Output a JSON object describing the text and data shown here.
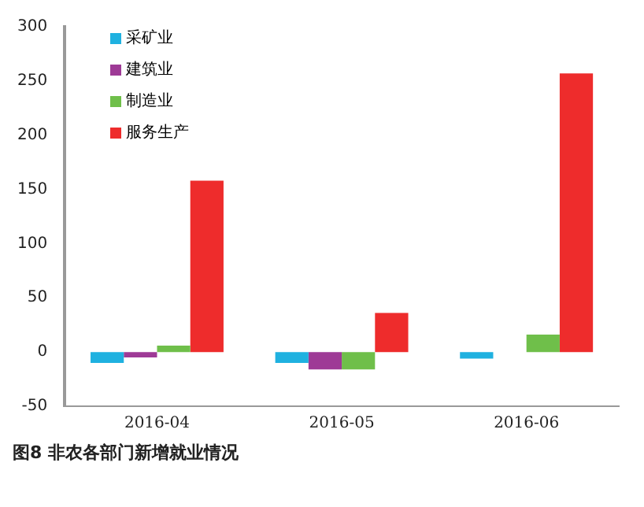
{
  "chart_data": {
    "type": "bar",
    "title": "图8 非农各部门新增就业情况",
    "categories": [
      "2016-04",
      "2016-05",
      "2016-06"
    ],
    "series": [
      {
        "name": "采矿业",
        "color": "#1fb1e0",
        "values": [
          -10,
          -10,
          -6
        ]
      },
      {
        "name": "建筑业",
        "color": "#9e3a96",
        "values": [
          -5,
          -16,
          0
        ]
      },
      {
        "name": "制造业",
        "color": "#6fbf4a",
        "values": [
          6,
          -16,
          16
        ]
      },
      {
        "name": "服务生产",
        "color": "#ee2c2c",
        "values": [
          158,
          36,
          257
        ]
      }
    ],
    "ylim": [
      -50,
      300
    ],
    "yticks": [
      -50,
      0,
      50,
      100,
      150,
      200,
      250,
      300
    ],
    "grid": false,
    "legend": "top left"
  }
}
